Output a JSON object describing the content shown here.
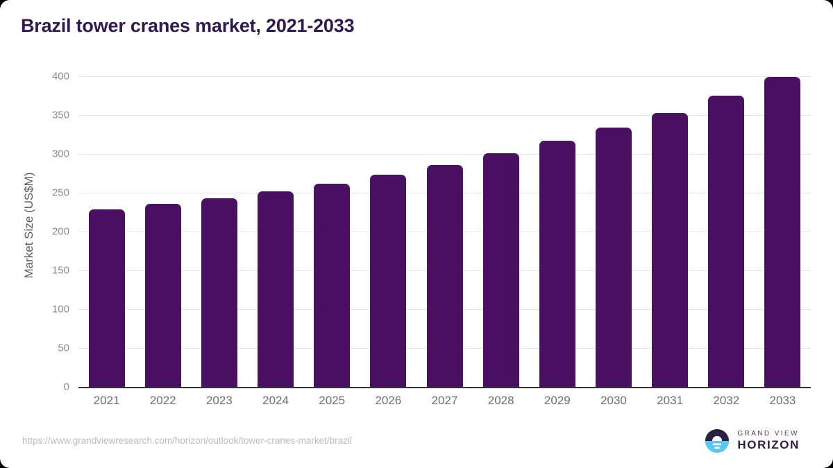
{
  "header": {
    "title": "Brazil tower cranes market, 2021-2033",
    "title_color": "#31194f"
  },
  "chart_data": {
    "type": "bar",
    "title": "Brazil tower cranes market, 2021-2033",
    "categories": [
      "2021",
      "2022",
      "2023",
      "2024",
      "2025",
      "2026",
      "2027",
      "2028",
      "2029",
      "2030",
      "2031",
      "2032",
      "2033"
    ],
    "values": [
      229,
      236,
      243,
      252,
      262,
      273,
      286,
      301,
      317,
      334,
      353,
      375,
      399
    ],
    "xlabel": "",
    "ylabel": "Market Size (US$M)",
    "ylim": [
      0,
      400
    ],
    "yticks": [
      0,
      50,
      100,
      150,
      200,
      250,
      300,
      350,
      400
    ],
    "grid": true,
    "legend": "none",
    "bar_color": "#4a1162"
  },
  "footer": {
    "source_url": "https://www.grandviewresearch.com/horizon/outlook/tower-cranes-market/brazil",
    "logo": {
      "line1": "GRAND VIEW",
      "line2": "HORIZON",
      "colors": {
        "circle_top": "#2b2143",
        "circle_bottom": "#5bc6f0",
        "sun": "#ffffff"
      }
    }
  }
}
